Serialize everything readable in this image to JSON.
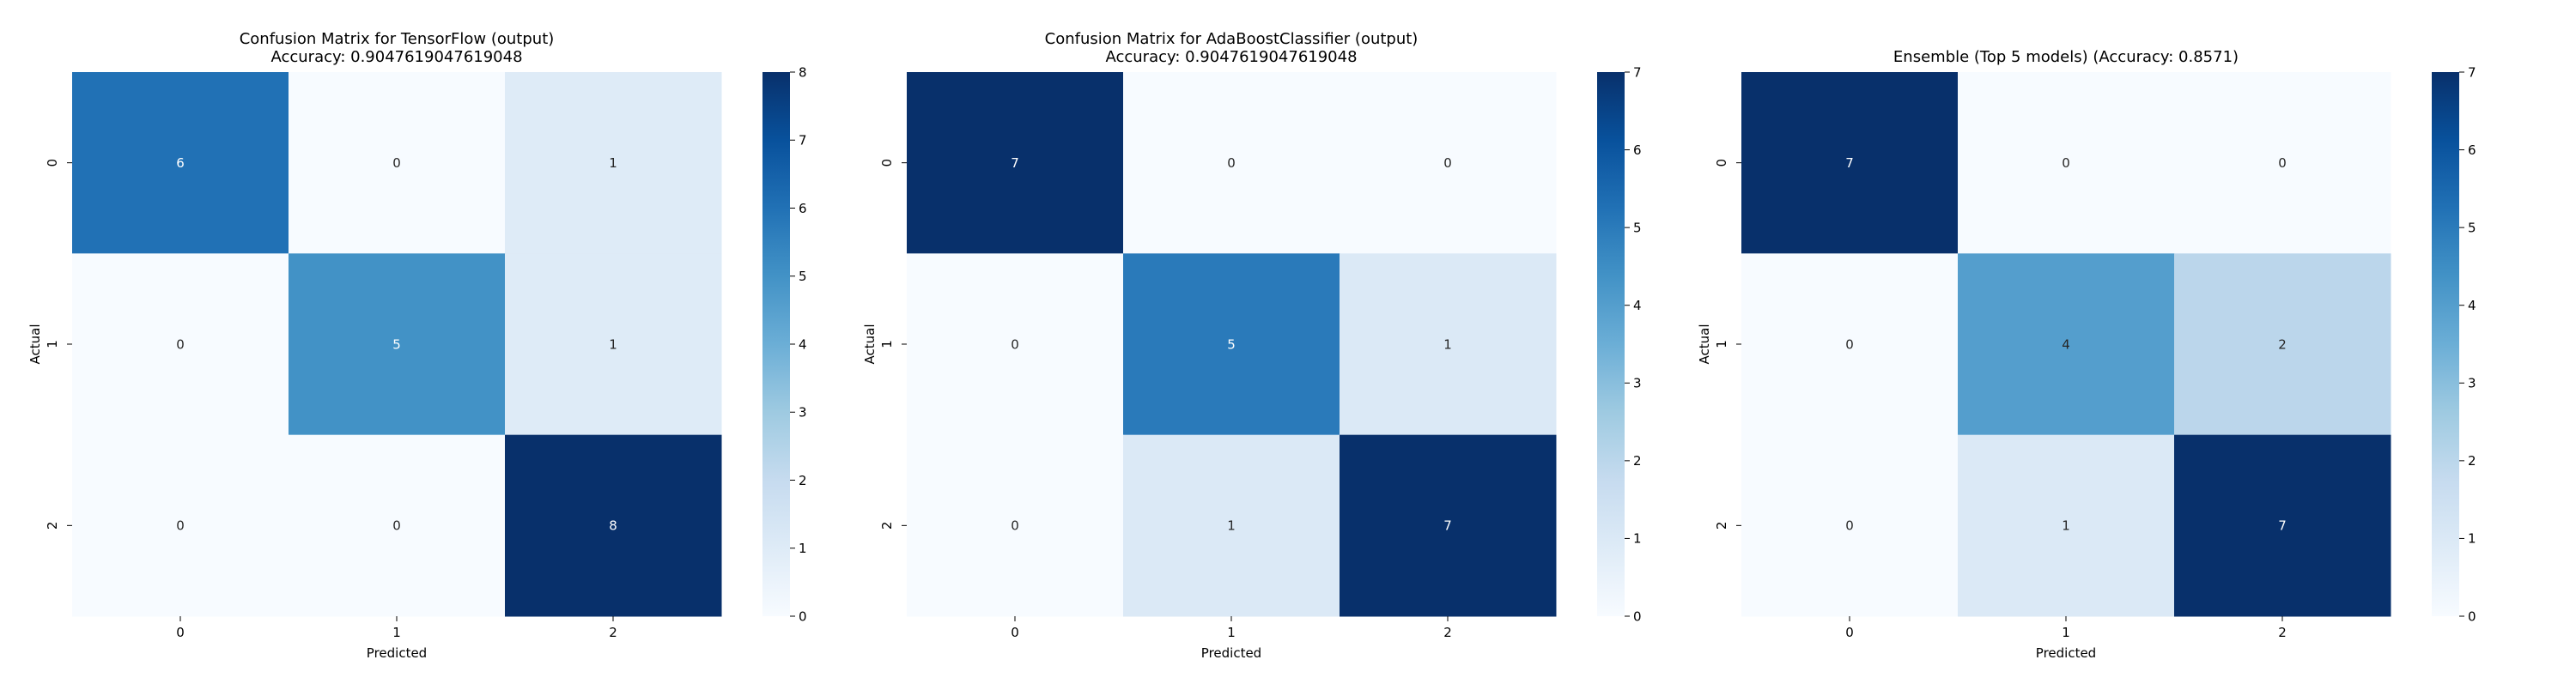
{
  "chart_data": [
    {
      "type": "heatmap",
      "title": "Confusion Matrix for TensorFlow (output)\nAccuracy: 0.9047619047619048",
      "xlabel": "Predicted",
      "ylabel": "Actual",
      "x_categories": [
        "0",
        "1",
        "2"
      ],
      "y_categories": [
        "0",
        "1",
        "2"
      ],
      "values": [
        [
          6,
          0,
          1
        ],
        [
          0,
          5,
          1
        ],
        [
          0,
          0,
          8
        ]
      ],
      "colorbar": {
        "min": 0,
        "max": 8,
        "ticks": [
          0,
          1,
          2,
          3,
          4,
          5,
          6,
          7,
          8
        ]
      },
      "colormap": "Blues"
    },
    {
      "type": "heatmap",
      "title": "Confusion Matrix for AdaBoostClassifier (output)\nAccuracy: 0.9047619047619048",
      "xlabel": "Predicted",
      "ylabel": "Actual",
      "x_categories": [
        "0",
        "1",
        "2"
      ],
      "y_categories": [
        "0",
        "1",
        "2"
      ],
      "values": [
        [
          7,
          0,
          0
        ],
        [
          0,
          5,
          1
        ],
        [
          0,
          1,
          7
        ]
      ],
      "colorbar": {
        "min": 0,
        "max": 7,
        "ticks": [
          0,
          1,
          2,
          3,
          4,
          5,
          6,
          7
        ]
      },
      "colormap": "Blues"
    },
    {
      "type": "heatmap",
      "title": "Ensemble (Top 5 models) (Accuracy: 0.8571)",
      "xlabel": "Predicted",
      "ylabel": "Actual",
      "x_categories": [
        "0",
        "1",
        "2"
      ],
      "y_categories": [
        "0",
        "1",
        "2"
      ],
      "values": [
        [
          7,
          0,
          0
        ],
        [
          0,
          4,
          2
        ],
        [
          0,
          1,
          7
        ]
      ],
      "colorbar": {
        "min": 0,
        "max": 7,
        "ticks": [
          0,
          1,
          2,
          3,
          4,
          5,
          6,
          7
        ]
      },
      "colormap": "Blues"
    }
  ]
}
